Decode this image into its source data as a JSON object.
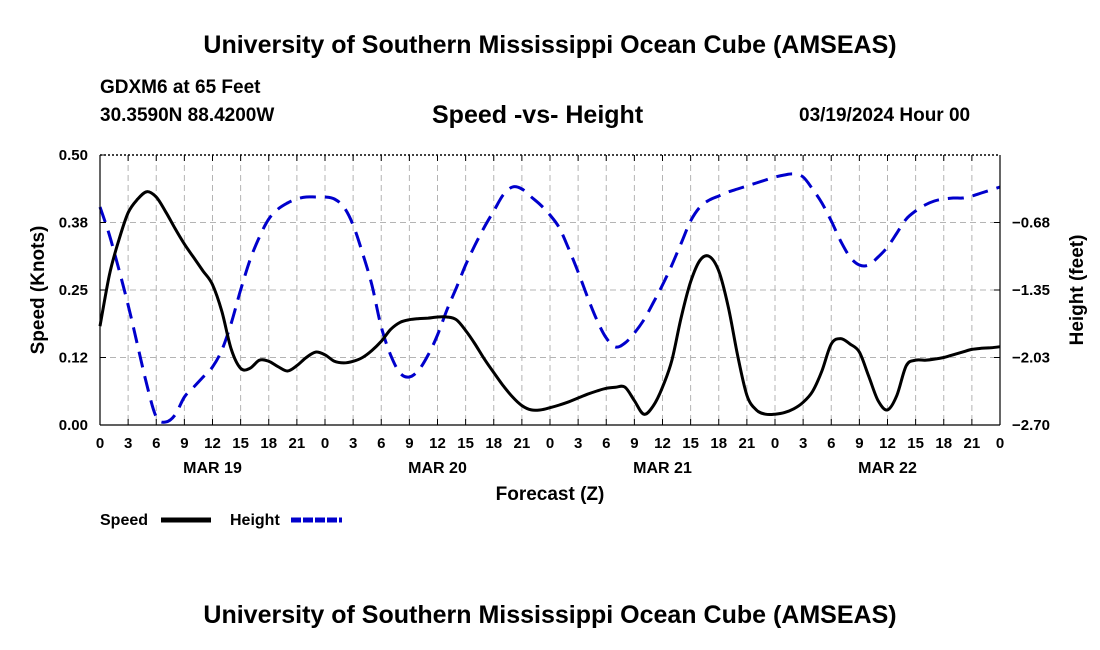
{
  "header": {
    "title": "University of Southern Mississippi Ocean Cube (AMSEAS)",
    "station": "GDXM6 at 65 Feet",
    "coords": "30.3590N  88.4200W",
    "subtitle": "Speed -vs- Height",
    "datetime": "03/19/2024 Hour 00"
  },
  "footer": {
    "title": "University of Southern Mississippi Ocean Cube (AMSEAS)"
  },
  "chart_data": {
    "type": "line",
    "title": "Speed -vs- Height",
    "xlabel": "Forecast (Z)",
    "ylabel": "Speed (Knots)",
    "y2label": "Height (feet)",
    "xlim": [
      0,
      96
    ],
    "ylim": [
      0,
      0.5
    ],
    "y2lim": [
      -2.7,
      -0.0
    ],
    "grid": true,
    "x_ticks": [
      0,
      3,
      6,
      9,
      12,
      15,
      18,
      21,
      24,
      27,
      30,
      33,
      36,
      39,
      42,
      45,
      48,
      51,
      54,
      57,
      60,
      63,
      66,
      69,
      72,
      75,
      78,
      81,
      84,
      87,
      90,
      93,
      96
    ],
    "x_tick_labels": [
      "0",
      "3",
      "6",
      "9",
      "12",
      "15",
      "18",
      "21",
      "0",
      "3",
      "6",
      "9",
      "12",
      "15",
      "18",
      "21",
      "0",
      "3",
      "6",
      "9",
      "12",
      "15",
      "18",
      "21",
      "0",
      "3",
      "6",
      "9",
      "12",
      "15",
      "18",
      "21",
      "0"
    ],
    "date_labels": [
      {
        "label": "MAR 19",
        "x": 12
      },
      {
        "label": "MAR 20",
        "x": 36
      },
      {
        "label": "MAR 21",
        "x": 60
      },
      {
        "label": "MAR 22",
        "x": 84
      }
    ],
    "y_ticks": [
      0.0,
      0.125,
      0.25,
      0.375,
      0.5
    ],
    "y_tick_labels": [
      "0.00",
      "0.12",
      "0.25",
      "0.38",
      "0.50"
    ],
    "y2_ticks": [
      -2.7,
      -2.025,
      -1.35,
      -0.675
    ],
    "y2_tick_labels": [
      "−2.70",
      "−2.03",
      "−1.35",
      "−0.68"
    ],
    "series": [
      {
        "name": "Speed",
        "axis": "left",
        "color": "#000000",
        "style": "solid",
        "x": [
          0,
          1,
          2,
          3,
          4,
          5,
          6,
          7,
          8,
          9,
          10,
          11,
          12,
          13,
          14,
          15,
          16,
          17,
          18,
          19,
          20,
          21,
          22,
          23,
          24,
          25,
          26,
          27,
          28,
          29,
          30,
          31,
          32,
          33,
          34,
          35,
          36,
          37,
          38,
          39,
          40,
          41,
          42,
          43,
          44,
          45,
          46,
          47,
          48,
          49,
          50,
          51,
          52,
          53,
          54,
          55,
          56,
          57,
          58,
          59,
          60,
          61,
          62,
          63,
          64,
          65,
          66,
          67,
          68,
          69,
          70,
          71,
          72,
          73,
          74,
          75,
          76,
          77,
          78,
          79,
          80,
          81,
          82,
          83,
          84,
          85,
          86,
          87,
          88,
          89,
          90,
          91,
          92,
          93,
          94,
          95,
          96
        ],
        "values": [
          0.183,
          0.278,
          0.342,
          0.393,
          0.418,
          0.432,
          0.422,
          0.395,
          0.364,
          0.335,
          0.31,
          0.285,
          0.26,
          0.21,
          0.14,
          0.105,
          0.105,
          0.12,
          0.118,
          0.108,
          0.1,
          0.11,
          0.125,
          0.135,
          0.13,
          0.118,
          0.115,
          0.118,
          0.125,
          0.138,
          0.155,
          0.177,
          0.19,
          0.195,
          0.197,
          0.198,
          0.2,
          0.2,
          0.195,
          0.175,
          0.15,
          0.122,
          0.097,
          0.073,
          0.052,
          0.036,
          0.028,
          0.028,
          0.032,
          0.037,
          0.043,
          0.05,
          0.057,
          0.063,
          0.068,
          0.07,
          0.07,
          0.045,
          0.02,
          0.035,
          0.07,
          0.12,
          0.2,
          0.265,
          0.305,
          0.312,
          0.285,
          0.22,
          0.13,
          0.055,
          0.028,
          0.02,
          0.02,
          0.023,
          0.03,
          0.042,
          0.062,
          0.1,
          0.15,
          0.16,
          0.15,
          0.135,
          0.09,
          0.045,
          0.028,
          0.055,
          0.11,
          0.12,
          0.12,
          0.122,
          0.125,
          0.13,
          0.135,
          0.14,
          0.142,
          0.143,
          0.145
        ]
      },
      {
        "name": "Height",
        "axis": "right",
        "color": "#0000cc",
        "style": "dashed",
        "x": [
          0,
          1,
          2,
          3,
          4,
          5,
          6,
          7,
          8,
          9,
          10,
          11,
          12,
          13,
          14,
          15,
          16,
          17,
          18,
          19,
          20,
          21,
          22,
          23,
          24,
          25,
          26,
          27,
          28,
          29,
          30,
          31,
          32,
          33,
          34,
          35,
          36,
          37,
          38,
          39,
          40,
          41,
          42,
          43,
          44,
          45,
          46,
          47,
          48,
          49,
          50,
          51,
          52,
          53,
          54,
          55,
          56,
          57,
          58,
          59,
          60,
          61,
          62,
          63,
          64,
          65,
          66,
          67,
          68,
          69,
          70,
          71,
          72,
          73,
          74,
          75,
          76,
          77,
          78,
          79,
          80,
          81,
          82,
          83,
          84,
          85,
          86,
          87,
          88,
          89,
          90,
          91,
          92,
          93,
          94,
          95,
          96
        ],
        "values": [
          -0.52,
          -0.8,
          -1.14,
          -1.5,
          -1.9,
          -2.3,
          -2.62,
          -2.67,
          -2.6,
          -2.42,
          -2.32,
          -2.22,
          -2.12,
          -1.95,
          -1.68,
          -1.35,
          -1.05,
          -0.82,
          -0.64,
          -0.54,
          -0.48,
          -0.44,
          -0.42,
          -0.42,
          -0.42,
          -0.44,
          -0.52,
          -0.7,
          -0.98,
          -1.3,
          -1.72,
          -2.0,
          -2.18,
          -2.22,
          -2.15,
          -2.0,
          -1.8,
          -1.55,
          -1.33,
          -1.1,
          -0.9,
          -0.72,
          -0.56,
          -0.4,
          -0.32,
          -0.34,
          -0.42,
          -0.5,
          -0.6,
          -0.73,
          -0.94,
          -1.17,
          -1.42,
          -1.65,
          -1.83,
          -1.92,
          -1.88,
          -1.78,
          -1.65,
          -1.48,
          -1.3,
          -1.1,
          -0.88,
          -0.66,
          -0.52,
          -0.45,
          -0.41,
          -0.37,
          -0.34,
          -0.31,
          -0.28,
          -0.25,
          -0.22,
          -0.2,
          -0.19,
          -0.22,
          -0.34,
          -0.48,
          -0.66,
          -0.86,
          -1.02,
          -1.1,
          -1.1,
          -1.02,
          -0.92,
          -0.78,
          -0.64,
          -0.56,
          -0.5,
          -0.46,
          -0.44,
          -0.43,
          -0.43,
          -0.41,
          -0.38,
          -0.35,
          -0.32
        ]
      }
    ],
    "legend": [
      {
        "label": "Speed",
        "color": "#000000",
        "style": "solid"
      },
      {
        "label": "Height",
        "color": "#0000cc",
        "style": "dashed"
      }
    ]
  }
}
